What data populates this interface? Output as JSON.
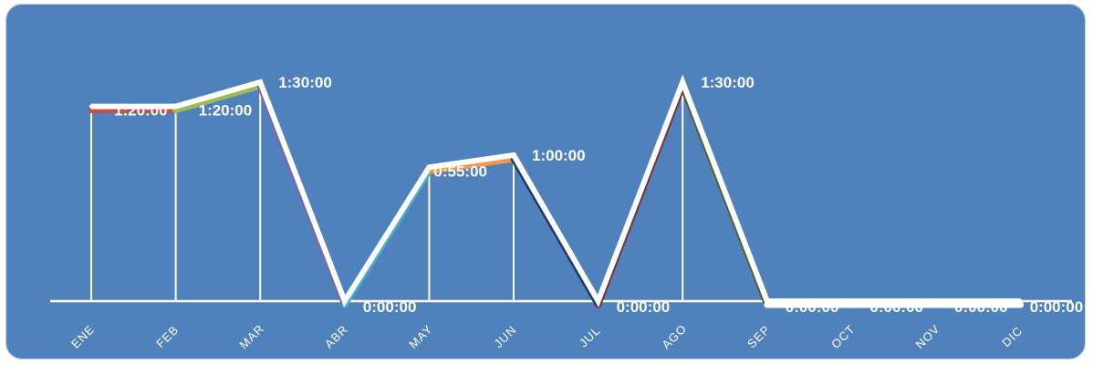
{
  "chart_data": {
    "type": "line",
    "categories": [
      "ENE",
      "FEB",
      "MAR",
      "ABR",
      "MAY",
      "JUN",
      "JUL",
      "AGO",
      "SEP",
      "OCT",
      "NOV",
      "DIC"
    ],
    "values_minutes": [
      80,
      80,
      90,
      0,
      55,
      60,
      0,
      90,
      0,
      0,
      0,
      0
    ],
    "data_labels": [
      "1:20:00",
      "1:20:00",
      "1:30:00",
      "0:00:00",
      "0:55:00",
      "1:00:00",
      "0:00:00",
      "1:30:00",
      "0:00:00",
      "0:00:00",
      "0:00:00",
      "0:00:00"
    ],
    "ylim_minutes": [
      0,
      90
    ],
    "segment_colors": [
      "#c0504d",
      "#9bbb59",
      "#8064a2",
      "#4bacc6",
      "#f79646",
      "#1f3864",
      "#7b2c2c",
      "#4f6228",
      "#ffffff",
      "#ffffff",
      "#ffffff"
    ],
    "title": "",
    "xlabel": "",
    "ylabel": "",
    "legend": "none"
  }
}
